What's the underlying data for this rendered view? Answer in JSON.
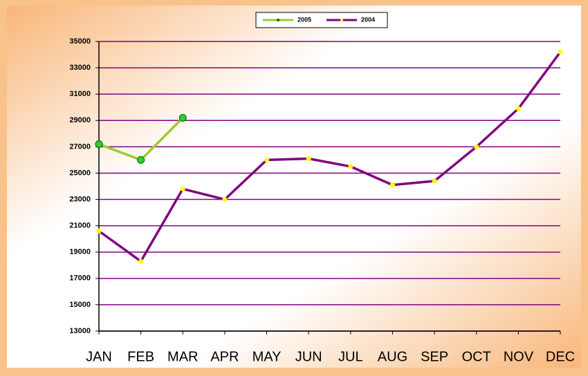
{
  "chart_data": {
    "type": "line",
    "categories": [
      "JAN",
      "FEB",
      "MAR",
      "APR",
      "MAY",
      "JUN",
      "JUL",
      "AUG",
      "SEP",
      "OCT",
      "NOV",
      "DEC"
    ],
    "series": [
      {
        "name": "2005",
        "color": "#99cc33",
        "marker_color": "#33cc33",
        "values": [
          27200,
          26000,
          29200,
          null,
          null,
          null,
          null,
          null,
          null,
          null,
          null,
          null
        ]
      },
      {
        "name": "2004",
        "color": "#800080",
        "marker_color": "#ffff00",
        "values": [
          20600,
          18300,
          23800,
          23000,
          26000,
          26100,
          25500,
          24100,
          24400,
          27000,
          29900,
          34200
        ]
      }
    ],
    "ylim": [
      13000,
      35000
    ],
    "yticks": [
      13000,
      15000,
      17000,
      19000,
      21000,
      23000,
      25000,
      27000,
      29000,
      31000,
      33000,
      35000
    ],
    "grid": true,
    "grid_color": "#800080",
    "legend": "top"
  }
}
